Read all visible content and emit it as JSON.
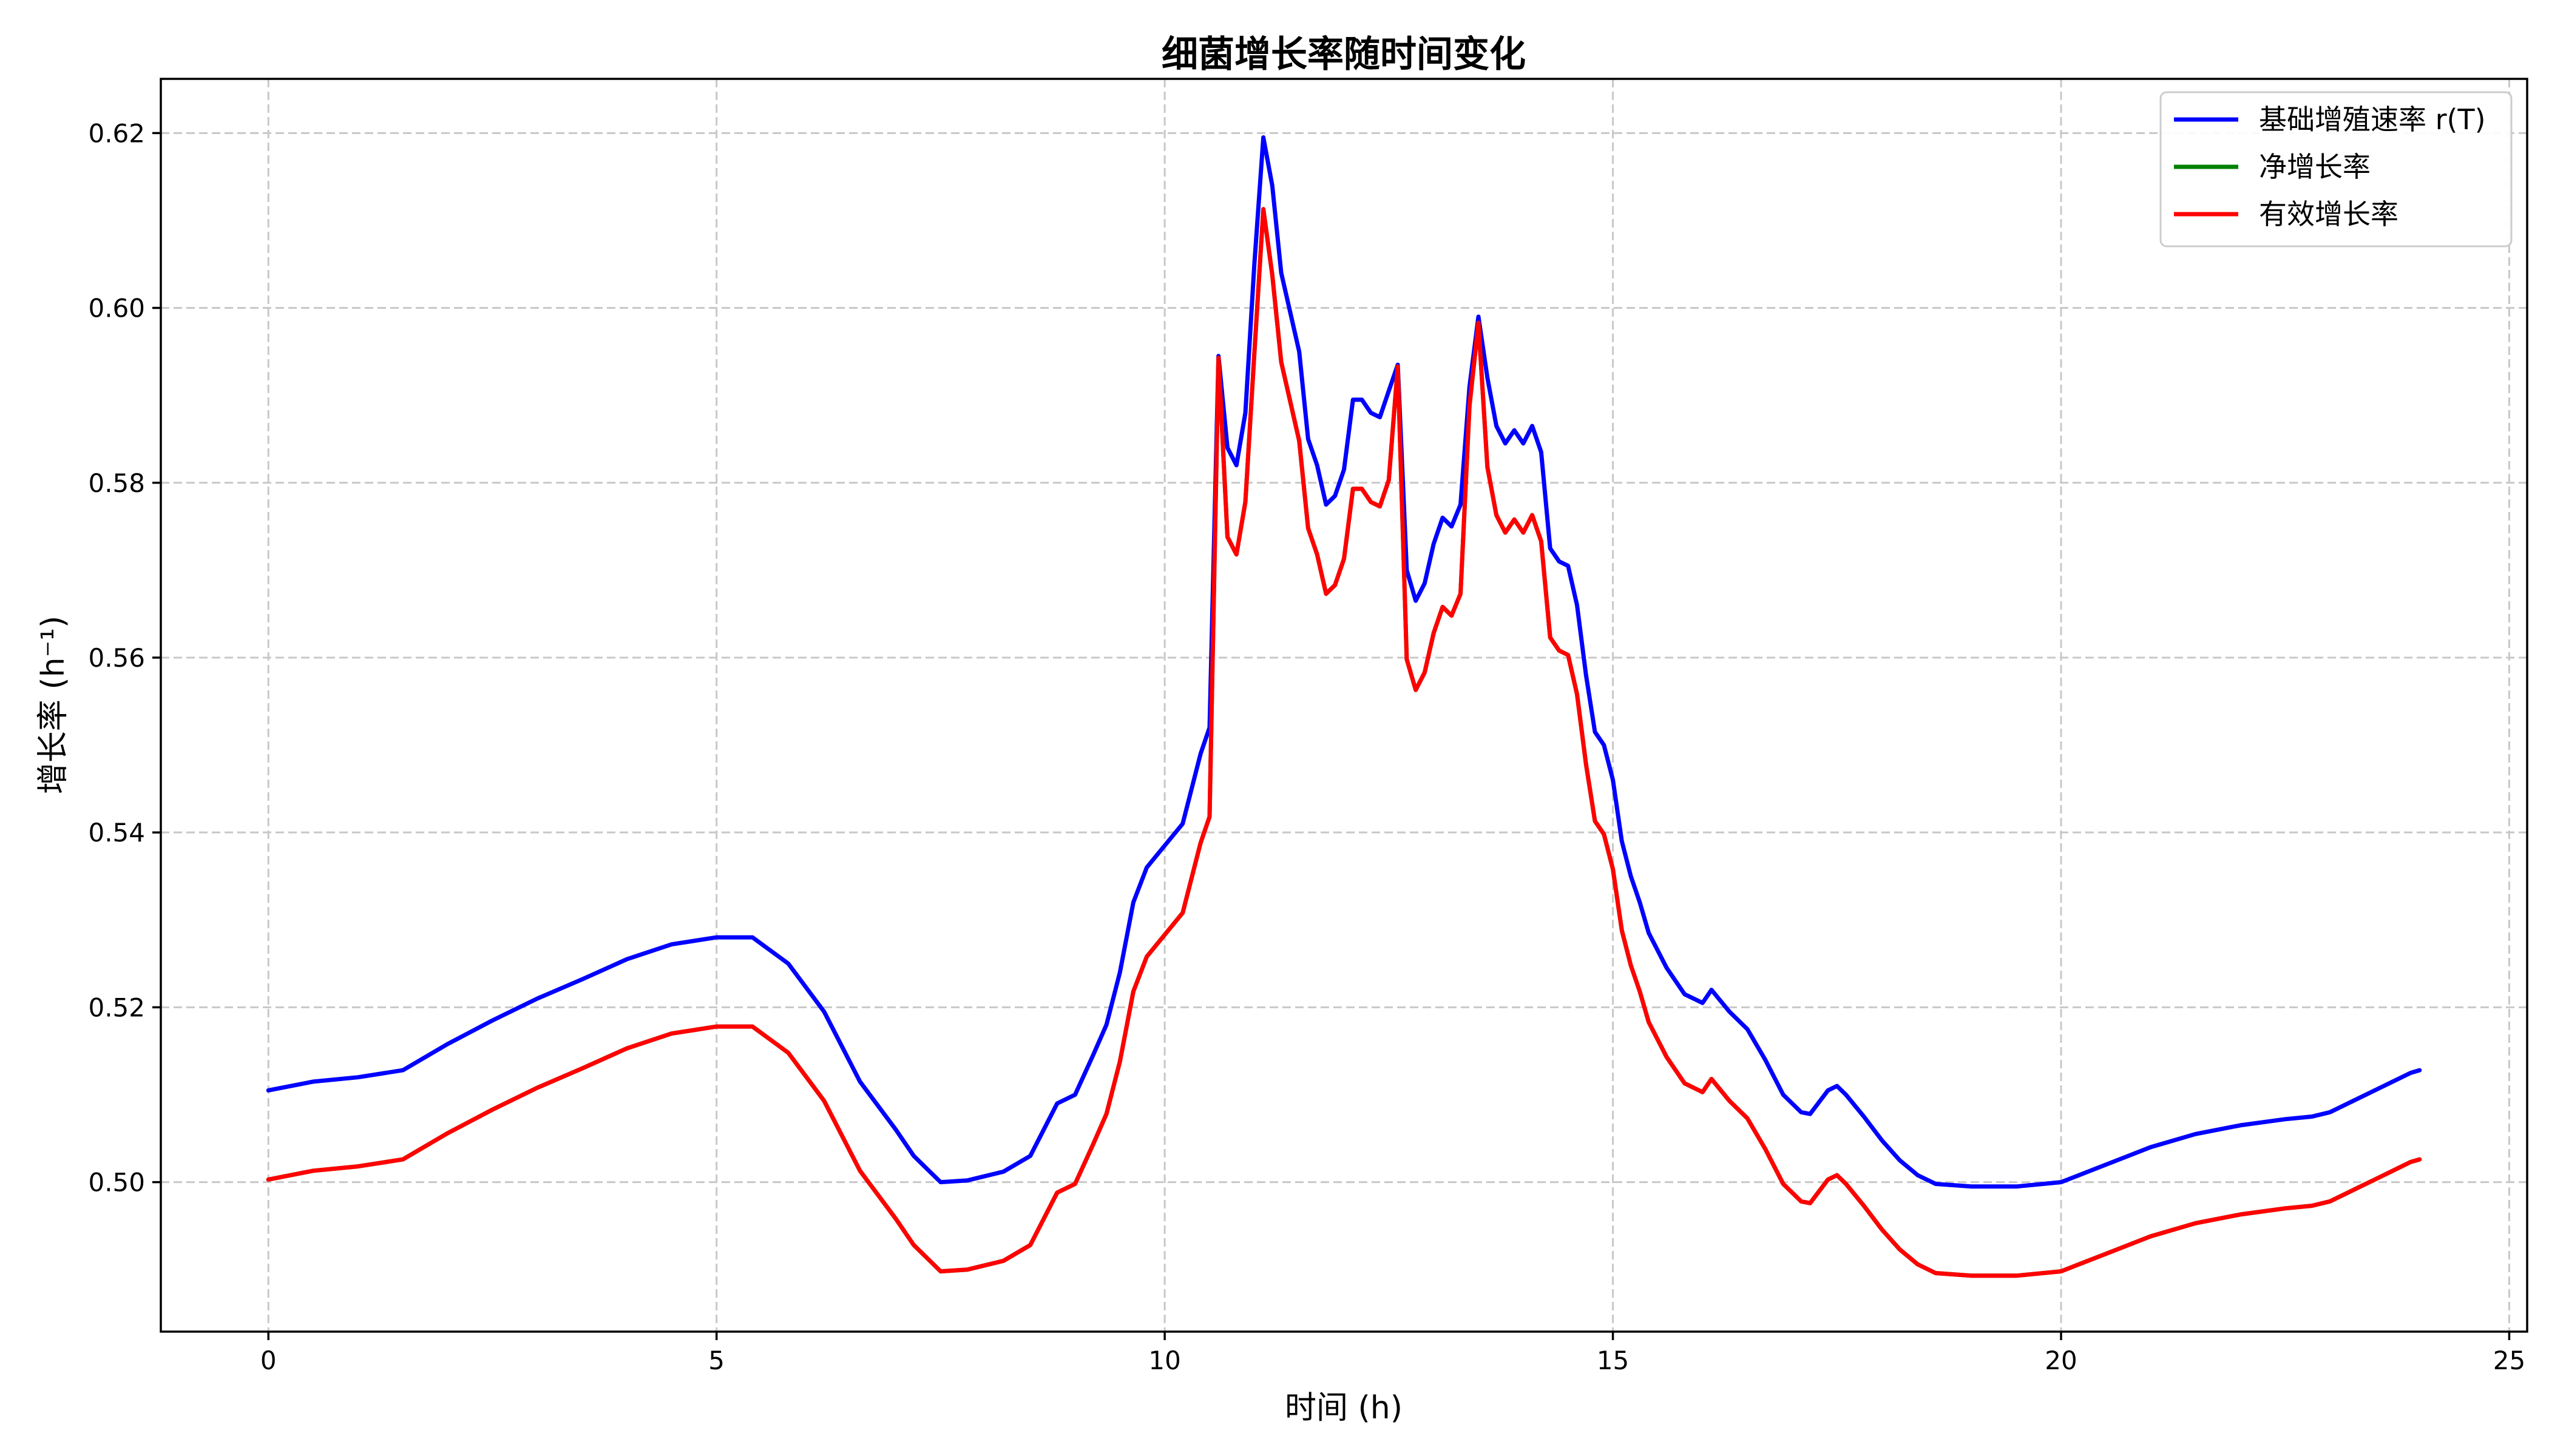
{
  "chart_data": {
    "type": "line",
    "title": "细菌增长率随时间变化",
    "xlabel": "时间 (h)",
    "ylabel": "增长率 (h⁻¹)",
    "xlim": [
      -1.2,
      25.2
    ],
    "ylim": [
      0.4829,
      0.6262
    ],
    "xticks": [
      0,
      5,
      10,
      15,
      20,
      25
    ],
    "yticks": [
      0.5,
      0.52,
      0.54,
      0.56,
      0.58,
      0.6,
      0.62
    ],
    "ytick_labels": [
      "0.50",
      "0.52",
      "0.54",
      "0.56",
      "0.58",
      "0.60",
      "0.62"
    ],
    "grid": true,
    "legend_position": "top-right",
    "x": [
      0,
      0.5,
      1,
      1.5,
      2,
      2.5,
      3,
      3.5,
      4,
      4.5,
      5,
      5.4,
      5.8,
      6.2,
      6.6,
      7,
      7.2,
      7.5,
      7.8,
      8.2,
      8.5,
      8.8,
      9,
      9.2,
      9.35,
      9.5,
      9.65,
      9.8,
      10,
      10.2,
      10.4,
      10.5,
      10.6,
      10.7,
      10.8,
      10.9,
      11,
      11.1,
      11.2,
      11.3,
      11.5,
      11.6,
      11.7,
      11.8,
      11.9,
      12,
      12.1,
      12.2,
      12.3,
      12.4,
      12.5,
      12.6,
      12.7,
      12.8,
      12.9,
      13,
      13.1,
      13.2,
      13.3,
      13.4,
      13.5,
      13.6,
      13.7,
      13.8,
      13.9,
      14,
      14.1,
      14.2,
      14.3,
      14.4,
      14.5,
      14.6,
      14.7,
      14.8,
      14.9,
      15,
      15.1,
      15.2,
      15.3,
      15.4,
      15.6,
      15.8,
      16,
      16.1,
      16.3,
      16.5,
      16.7,
      16.9,
      17.1,
      17.2,
      17.4,
      17.5,
      17.6,
      17.8,
      18,
      18.2,
      18.4,
      18.6,
      19,
      19.5,
      20,
      20.5,
      21,
      21.5,
      22,
      22.5,
      22.8,
      23,
      23.3,
      23.6,
      23.9,
      24
    ],
    "series": [
      {
        "name": "基础增殖速率 r(T)",
        "color": "#0000ff",
        "values": [
          0.5105,
          0.5115,
          0.512,
          0.5128,
          0.5158,
          0.5185,
          0.521,
          0.5232,
          0.5255,
          0.5272,
          0.528,
          0.528,
          0.525,
          0.5195,
          0.5115,
          0.506,
          0.503,
          0.5,
          0.5002,
          0.5012,
          0.503,
          0.509,
          0.51,
          0.5145,
          0.518,
          0.524,
          0.532,
          0.536,
          0.5385,
          0.541,
          0.549,
          0.552,
          0.5945,
          0.584,
          0.582,
          0.588,
          0.605,
          0.6195,
          0.614,
          0.604,
          0.595,
          0.585,
          0.582,
          0.5775,
          0.5785,
          0.5815,
          0.5895,
          0.5895,
          0.588,
          0.5875,
          0.5905,
          0.5935,
          0.57,
          0.5665,
          0.5685,
          0.573,
          0.576,
          0.575,
          0.5775,
          0.591,
          0.599,
          0.592,
          0.5865,
          0.5845,
          0.586,
          0.5845,
          0.5865,
          0.5835,
          0.5725,
          0.571,
          0.5705,
          0.566,
          0.558,
          0.5515,
          0.55,
          0.546,
          0.539,
          0.535,
          0.532,
          0.5285,
          0.5245,
          0.5215,
          0.5205,
          0.522,
          0.5195,
          0.5175,
          0.514,
          0.51,
          0.508,
          0.5078,
          0.5105,
          0.511,
          0.51,
          0.5075,
          0.5048,
          0.5025,
          0.5008,
          0.4998,
          0.4995,
          0.4995,
          0.5,
          0.502,
          0.504,
          0.5055,
          0.5065,
          0.5072,
          0.5075,
          0.508,
          0.5095,
          0.511,
          0.5125,
          0.5128
        ]
      },
      {
        "name": "净增长率",
        "color": "#008000",
        "values": [
          0.5003,
          0.5013,
          0.5018,
          0.5026,
          0.5056,
          0.5083,
          0.5108,
          0.513,
          0.5153,
          0.517,
          0.5178,
          0.5178,
          0.5148,
          0.5093,
          0.5013,
          0.4958,
          0.4928,
          0.4898,
          0.49,
          0.491,
          0.4928,
          0.4988,
          0.4998,
          0.5043,
          0.5078,
          0.5138,
          0.5218,
          0.5258,
          0.5283,
          0.5308,
          0.5388,
          0.5418,
          0.5943,
          0.5738,
          0.5718,
          0.5778,
          0.5948,
          0.6113,
          0.6038,
          0.5938,
          0.5848,
          0.5748,
          0.5718,
          0.5673,
          0.5683,
          0.5713,
          0.5793,
          0.5793,
          0.5778,
          0.5773,
          0.5803,
          0.5933,
          0.5598,
          0.5563,
          0.5583,
          0.5628,
          0.5658,
          0.5648,
          0.5673,
          0.5888,
          0.5983,
          0.5818,
          0.5763,
          0.5743,
          0.5758,
          0.5743,
          0.5763,
          0.5733,
          0.5623,
          0.5608,
          0.5603,
          0.5558,
          0.5478,
          0.5413,
          0.5398,
          0.5358,
          0.5288,
          0.5248,
          0.5218,
          0.5183,
          0.5143,
          0.5113,
          0.5103,
          0.5118,
          0.5093,
          0.5073,
          0.5038,
          0.4998,
          0.4978,
          0.4976,
          0.5003,
          0.5008,
          0.4998,
          0.4973,
          0.4946,
          0.4923,
          0.4906,
          0.4896,
          0.4893,
          0.4893,
          0.4898,
          0.4918,
          0.4938,
          0.4953,
          0.4963,
          0.497,
          0.4973,
          0.4978,
          0.4993,
          0.5008,
          0.5023,
          0.5026
        ]
      },
      {
        "name": "有效增长率",
        "color": "#ff0000",
        "values": [
          0.5003,
          0.5013,
          0.5018,
          0.5026,
          0.5056,
          0.5083,
          0.5108,
          0.513,
          0.5153,
          0.517,
          0.5178,
          0.5178,
          0.5148,
          0.5093,
          0.5013,
          0.4958,
          0.4928,
          0.4898,
          0.49,
          0.491,
          0.4928,
          0.4988,
          0.4998,
          0.5043,
          0.5078,
          0.5138,
          0.5218,
          0.5258,
          0.5283,
          0.5308,
          0.5388,
          0.5418,
          0.5943,
          0.5738,
          0.5718,
          0.5778,
          0.5948,
          0.6113,
          0.6038,
          0.5938,
          0.5848,
          0.5748,
          0.5718,
          0.5673,
          0.5683,
          0.5713,
          0.5793,
          0.5793,
          0.5778,
          0.5773,
          0.5803,
          0.5933,
          0.5598,
          0.5563,
          0.5583,
          0.5628,
          0.5658,
          0.5648,
          0.5673,
          0.5888,
          0.5983,
          0.5818,
          0.5763,
          0.5743,
          0.5758,
          0.5743,
          0.5763,
          0.5733,
          0.5623,
          0.5608,
          0.5603,
          0.5558,
          0.5478,
          0.5413,
          0.5398,
          0.5358,
          0.5288,
          0.5248,
          0.5218,
          0.5183,
          0.5143,
          0.5113,
          0.5103,
          0.5118,
          0.5093,
          0.5073,
          0.5038,
          0.4998,
          0.4978,
          0.4976,
          0.5003,
          0.5008,
          0.4998,
          0.4973,
          0.4946,
          0.4923,
          0.4906,
          0.4896,
          0.4893,
          0.4893,
          0.4898,
          0.4918,
          0.4938,
          0.4953,
          0.4963,
          0.497,
          0.4973,
          0.4978,
          0.4993,
          0.5008,
          0.5023,
          0.5026
        ]
      }
    ]
  }
}
